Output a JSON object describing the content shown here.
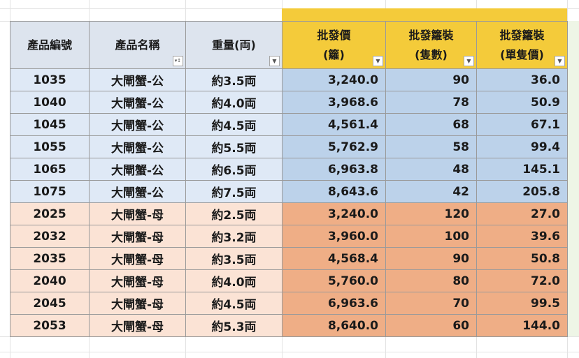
{
  "headers": [
    {
      "line1": "產品編號",
      "line2": "",
      "filter": false
    },
    {
      "line1": "產品名稱",
      "line2": "",
      "filter": true,
      "filter_icon": "sort-filter-icon"
    },
    {
      "line1": "重量(両)",
      "line2": "",
      "filter": true,
      "filter_icon": "dropdown-filter-icon"
    },
    {
      "line1": "批發價",
      "line2": "(籮)",
      "filter": true,
      "filter_icon": "dropdown-filter-icon"
    },
    {
      "line1": "批發籮裝",
      "line2": "(隻數)",
      "filter": true,
      "filter_icon": "dropdown-filter-icon"
    },
    {
      "line1": "批發籮裝",
      "line2": "(單隻價)",
      "filter": true,
      "filter_icon": "dropdown-filter-icon"
    }
  ],
  "rows": [
    {
      "group": "male",
      "id": "1035",
      "name": "大閘蟹-公",
      "weight": "約3.5両",
      "price": "3,240.0",
      "count": "90",
      "unit_price": "36.0"
    },
    {
      "group": "male",
      "id": "1040",
      "name": "大閘蟹-公",
      "weight": "約4.0両",
      "price": "3,968.6",
      "count": "78",
      "unit_price": "50.9"
    },
    {
      "group": "male",
      "id": "1045",
      "name": "大閘蟹-公",
      "weight": "約4.5両",
      "price": "4,561.4",
      "count": "68",
      "unit_price": "67.1"
    },
    {
      "group": "male",
      "id": "1055",
      "name": "大閘蟹-公",
      "weight": "約5.5両",
      "price": "5,762.9",
      "count": "58",
      "unit_price": "99.4"
    },
    {
      "group": "male",
      "id": "1065",
      "name": "大閘蟹-公",
      "weight": "約6.5両",
      "price": "6,963.8",
      "count": "48",
      "unit_price": "145.1"
    },
    {
      "group": "male",
      "id": "1075",
      "name": "大閘蟹-公",
      "weight": "約7.5両",
      "price": "8,643.6",
      "count": "42",
      "unit_price": "205.8"
    },
    {
      "group": "female",
      "id": "2025",
      "name": "大閘蟹-母",
      "weight": "約2.5両",
      "price": "3,240.0",
      "count": "120",
      "unit_price": "27.0"
    },
    {
      "group": "female",
      "id": "2032",
      "name": "大閘蟹-母",
      "weight": "約3.2両",
      "price": "3,960.0",
      "count": "100",
      "unit_price": "39.6"
    },
    {
      "group": "female",
      "id": "2035",
      "name": "大閘蟹-母",
      "weight": "約3.5両",
      "price": "4,568.4",
      "count": "90",
      "unit_price": "50.8"
    },
    {
      "group": "female",
      "id": "2040",
      "name": "大閘蟹-母",
      "weight": "約4.0両",
      "price": "5,760.0",
      "count": "80",
      "unit_price": "72.0"
    },
    {
      "group": "female",
      "id": "2045",
      "name": "大閘蟹-母",
      "weight": "約4.5両",
      "price": "6,963.6",
      "count": "70",
      "unit_price": "99.5"
    },
    {
      "group": "female",
      "id": "2053",
      "name": "大閘蟹-母",
      "weight": "約5.3両",
      "price": "8,640.0",
      "count": "60",
      "unit_price": "144.0"
    }
  ],
  "colors": {
    "header_blue": "#dde4ee",
    "header_yellow": "#f4cb3a",
    "male_light": "#dfe9f6",
    "male_dark": "#bcd2ea",
    "female_light": "#fbe3d5",
    "female_dark": "#efae86"
  }
}
